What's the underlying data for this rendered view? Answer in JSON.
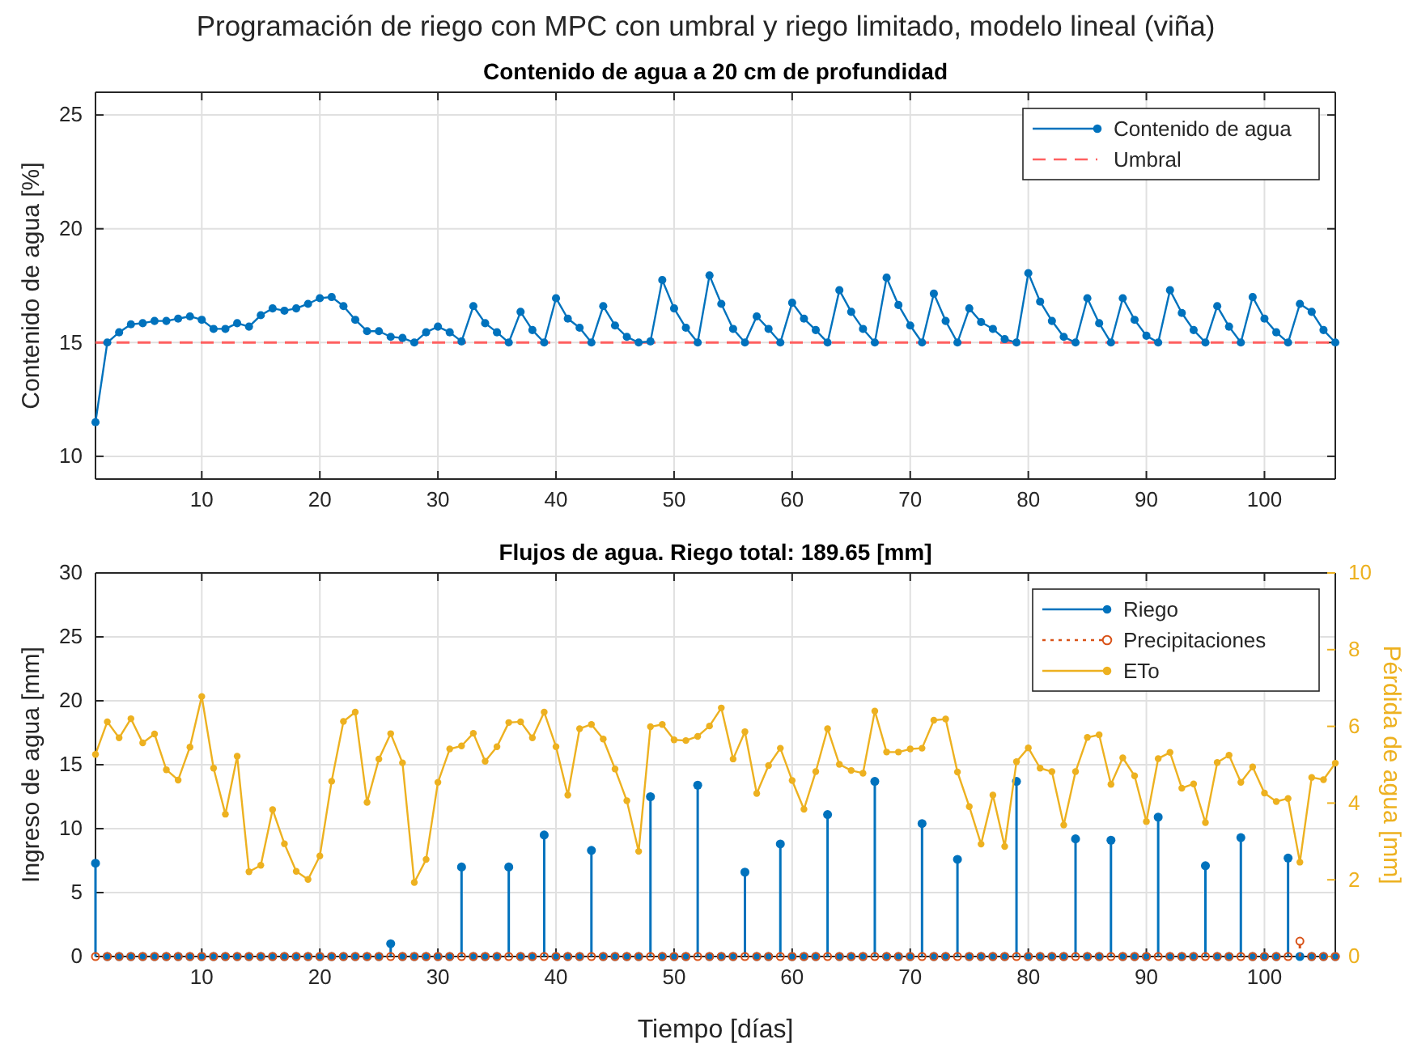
{
  "chart_data": [
    {
      "type": "line",
      "title": "Programación de riego con MPC con umbral y riego limitado, modelo lineal (viña)",
      "subtitle": "Contenido de agua a 20 cm de profundidad",
      "ylabel": "Contenido de agua [%]",
      "x": [
        1,
        2,
        3,
        4,
        5,
        6,
        7,
        8,
        9,
        10,
        11,
        12,
        13,
        14,
        15,
        16,
        17,
        18,
        19,
        20,
        21,
        22,
        23,
        24,
        25,
        26,
        27,
        28,
        29,
        30,
        31,
        32,
        33,
        34,
        35,
        36,
        37,
        38,
        39,
        40,
        41,
        42,
        43,
        44,
        45,
        46,
        47,
        48,
        49,
        50,
        51,
        52,
        53,
        54,
        55,
        56,
        57,
        58,
        59,
        60,
        61,
        62,
        63,
        64,
        65,
        66,
        67,
        68,
        69,
        70,
        71,
        72,
        73,
        74,
        75,
        76,
        77,
        78,
        79,
        80,
        81,
        82,
        83,
        84,
        85,
        86,
        87,
        88,
        89,
        90,
        91,
        92,
        93,
        94,
        95,
        96,
        97,
        98,
        99,
        100,
        101,
        102,
        103,
        104,
        105,
        106
      ],
      "series": [
        {
          "name": "Contenido de agua",
          "color": "#0072bd",
          "values": [
            11.5,
            15,
            15.45,
            15.8,
            15.85,
            15.95,
            15.95,
            16.05,
            16.15,
            16.0,
            15.6,
            15.6,
            15.85,
            15.7,
            16.2,
            16.5,
            16.4,
            16.5,
            16.7,
            16.95,
            17.0,
            16.6,
            16.0,
            15.5,
            15.5,
            15.25,
            15.2,
            15.0,
            15.45,
            15.7,
            15.45,
            15.05,
            16.6,
            15.85,
            15.45,
            15.0,
            16.35,
            15.55,
            15.0,
            16.95,
            16.05,
            15.65,
            15.0,
            16.6,
            15.75,
            15.25,
            15.0,
            15.05,
            17.75,
            16.5,
            15.65,
            15.0,
            17.95,
            16.7,
            15.6,
            15.0,
            16.15,
            15.6,
            15.0,
            16.75,
            16.05,
            15.55,
            15.0,
            17.3,
            16.35,
            15.6,
            15.0,
            17.85,
            16.65,
            15.75,
            15.0,
            17.15,
            15.95,
            15.0,
            16.5,
            15.9,
            15.6,
            15.15,
            15.0,
            18.05,
            16.8,
            15.95,
            15.25,
            15.0,
            16.95,
            15.85,
            15.0,
            16.95,
            16.0,
            15.3,
            15.0,
            17.3,
            16.3,
            15.55,
            15.0,
            16.6,
            15.7,
            15.0,
            17.0,
            16.05,
            15.45,
            15.0,
            16.7,
            16.35,
            15.55,
            15.0
          ]
        }
      ],
      "ref_lines": [
        {
          "axis": "y",
          "value": 15,
          "label": "Umbral",
          "color": "#ff6060",
          "line_style": "dashed"
        }
      ],
      "xlim": [
        1,
        106
      ],
      "xticks": [
        10,
        20,
        30,
        40,
        50,
        60,
        70,
        80,
        90,
        100
      ],
      "ylim": [
        9,
        26
      ],
      "yticks": [
        10,
        15,
        20,
        25
      ],
      "grid": true,
      "legend": "top right",
      "marker": "circle",
      "line_style": "solid"
    },
    {
      "type": "lollipop",
      "title": "Flujos de agua. Riego total: 189.65 [mm]",
      "xlabel": "Tiempo [días]",
      "ylabel": "Ingreso de agua [mm]",
      "y2label": "Pérdida de agua [mm]",
      "x": [
        1,
        2,
        3,
        4,
        5,
        6,
        7,
        8,
        9,
        10,
        11,
        12,
        13,
        14,
        15,
        16,
        17,
        18,
        19,
        20,
        21,
        22,
        23,
        24,
        25,
        26,
        27,
        28,
        29,
        30,
        31,
        32,
        33,
        34,
        35,
        36,
        37,
        38,
        39,
        40,
        41,
        42,
        43,
        44,
        45,
        46,
        47,
        48,
        49,
        50,
        51,
        52,
        53,
        54,
        55,
        56,
        57,
        58,
        59,
        60,
        61,
        62,
        63,
        64,
        65,
        66,
        67,
        68,
        69,
        70,
        71,
        72,
        73,
        74,
        75,
        76,
        77,
        78,
        79,
        80,
        81,
        82,
        83,
        84,
        85,
        86,
        87,
        88,
        89,
        90,
        91,
        92,
        93,
        94,
        95,
        96,
        97,
        98,
        99,
        100,
        101,
        102,
        103,
        104,
        105,
        106
      ],
      "series": [
        {
          "name": "Riego",
          "color": "#0072bd",
          "line_style": "solid",
          "values": [
            7.3,
            0,
            0,
            0,
            0,
            0,
            0,
            0,
            0,
            0,
            0,
            0,
            0,
            0,
            0,
            0,
            0,
            0,
            0,
            0,
            0,
            0,
            0,
            0,
            0,
            1.0,
            0,
            0,
            0,
            0,
            0,
            7.0,
            0,
            0,
            0,
            7.0,
            0,
            0,
            9.5,
            0,
            0,
            0,
            8.3,
            0,
            0,
            0,
            0,
            12.5,
            0,
            0,
            0,
            13.4,
            0,
            0,
            0,
            6.6,
            0,
            0,
            8.8,
            0,
            0,
            0,
            11.1,
            0,
            0,
            0,
            13.7,
            0,
            0,
            0,
            10.4,
            0,
            0,
            7.6,
            0,
            0,
            0,
            0,
            13.7,
            0,
            0,
            0,
            0,
            9.2,
            0,
            0,
            9.1,
            0,
            0,
            0,
            10.9,
            0,
            0,
            0,
            7.1,
            0,
            0,
            9.3,
            0,
            0,
            0,
            7.7,
            0,
            0,
            0,
            0
          ]
        },
        {
          "name": "Precipitaciones",
          "color": "#d95319",
          "line_style": "dotted",
          "values": [
            0,
            0,
            0,
            0,
            0,
            0,
            0,
            0,
            0,
            0,
            0,
            0,
            0,
            0,
            0,
            0,
            0,
            0,
            0,
            0,
            0,
            0,
            0,
            0,
            0,
            0,
            0,
            0,
            0,
            0,
            0,
            0,
            0,
            0,
            0,
            0,
            0,
            0,
            0,
            0,
            0,
            0,
            0,
            0,
            0,
            0,
            0,
            0,
            0,
            0,
            0,
            0,
            0,
            0,
            0,
            0,
            0,
            0,
            0,
            0,
            0,
            0,
            0,
            0,
            0,
            0,
            0,
            0,
            0,
            0,
            0,
            0,
            0,
            0,
            0,
            0,
            0,
            0,
            0,
            0,
            0,
            0,
            0,
            0,
            0,
            0,
            0,
            0,
            0,
            0,
            0,
            0,
            0,
            0,
            0,
            0,
            0,
            0,
            0,
            0,
            0,
            0,
            1.2,
            0,
            0,
            0
          ]
        },
        {
          "name": "ETo",
          "type": "line",
          "axis": "y2",
          "color": "#edb120",
          "line_style": "solid",
          "values": [
            5.27,
            6.12,
            5.7,
            6.2,
            5.57,
            5.8,
            4.87,
            4.6,
            5.46,
            6.78,
            4.91,
            3.71,
            5.22,
            2.21,
            2.38,
            3.83,
            2.94,
            2.22,
            2.01,
            2.62,
            4.57,
            6.13,
            6.37,
            4.02,
            5.15,
            5.81,
            5.05,
            1.93,
            2.53,
            4.54,
            5.41,
            5.49,
            5.82,
            5.09,
            5.47,
            6.1,
            6.12,
            5.7,
            6.37,
            5.47,
            4.21,
            5.94,
            6.05,
            5.67,
            4.89,
            4.06,
            2.74,
            5.99,
            6.05,
            5.65,
            5.63,
            5.74,
            6.01,
            6.48,
            5.15,
            5.86,
            4.25,
            4.98,
            5.43,
            4.59,
            3.84,
            4.82,
            5.94,
            5.01,
            4.85,
            4.78,
            6.4,
            5.33,
            5.33,
            5.41,
            5.43,
            6.16,
            6.19,
            4.81,
            3.91,
            2.93,
            4.21,
            2.87,
            5.08,
            5.44,
            4.91,
            4.82,
            3.43,
            4.82,
            5.71,
            5.78,
            4.49,
            5.18,
            4.71,
            3.52,
            5.16,
            5.32,
            4.39,
            4.5,
            3.49,
            5.06,
            5.25,
            4.54,
            4.94,
            4.26,
            4.04,
            4.12,
            2.46,
            4.67,
            4.61,
            5.04
          ]
        }
      ],
      "xlim": [
        1,
        106
      ],
      "xticks": [
        10,
        20,
        30,
        40,
        50,
        60,
        70,
        80,
        90,
        100
      ],
      "ylim": [
        0,
        30
      ],
      "yticks": [
        0,
        5,
        10,
        15,
        20,
        25,
        30
      ],
      "y2lim": [
        0,
        10
      ],
      "y2ticks": [
        0,
        2,
        4,
        6,
        8,
        10
      ],
      "grid": true,
      "legend": "top right",
      "marker": "circle"
    }
  ]
}
